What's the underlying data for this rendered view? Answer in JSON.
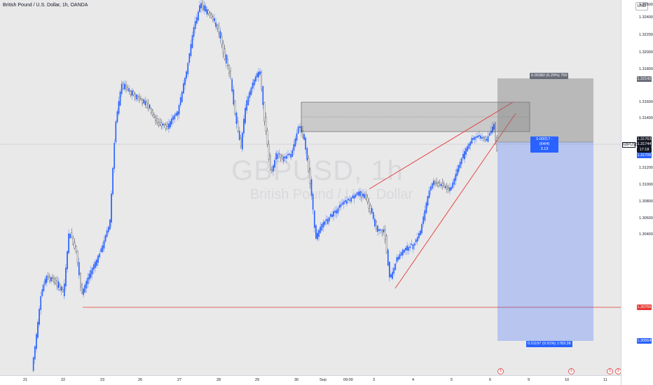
{
  "header": {
    "symbol_title": "British Pound / U.S. Dollar, 1h, OANDA"
  },
  "watermark": {
    "symbol": "GBPUSD, 1h",
    "description": "British Pound / U.S. Dollar"
  },
  "price_axis": {
    "currency": "USD",
    "ticks": [
      "1.32600",
      "1.32400",
      "1.32200",
      "1.32000",
      "1.31800",
      "1.31600",
      "1.31400",
      "1.31200",
      "1.31000",
      "1.30800",
      "1.30600",
      "1.30400"
    ],
    "labels": {
      "target": "1.32142",
      "high": "1.31763",
      "current": "1.31744",
      "countdown": "17:18",
      "entry": "1.31705",
      "support": "1.30766",
      "stop": "1.30564"
    },
    "symbol_tag": "GBPUSD"
  },
  "time_axis": {
    "ticks": [
      "21",
      "22",
      "23",
      "26",
      "27",
      "28",
      "29",
      "30",
      "Sep",
      "09:00",
      "3",
      "4",
      "5",
      "6",
      "9",
      "10",
      "11"
    ]
  },
  "position_tool": {
    "target_label": "0.00382 (0.29%) 750",
    "mid_label_1": "0.00017 - (64/4)",
    "mid_label_2": "3.13",
    "stop_label": "0.01197 (0.91%) 1783.38"
  },
  "colors": {
    "up": "#2962ff",
    "down": "#131722",
    "profit_zone": "rgba(125,125,125,0.45)",
    "loss_zone": "rgba(41,98,255,0.28)",
    "trendline": "#e53935"
  }
}
